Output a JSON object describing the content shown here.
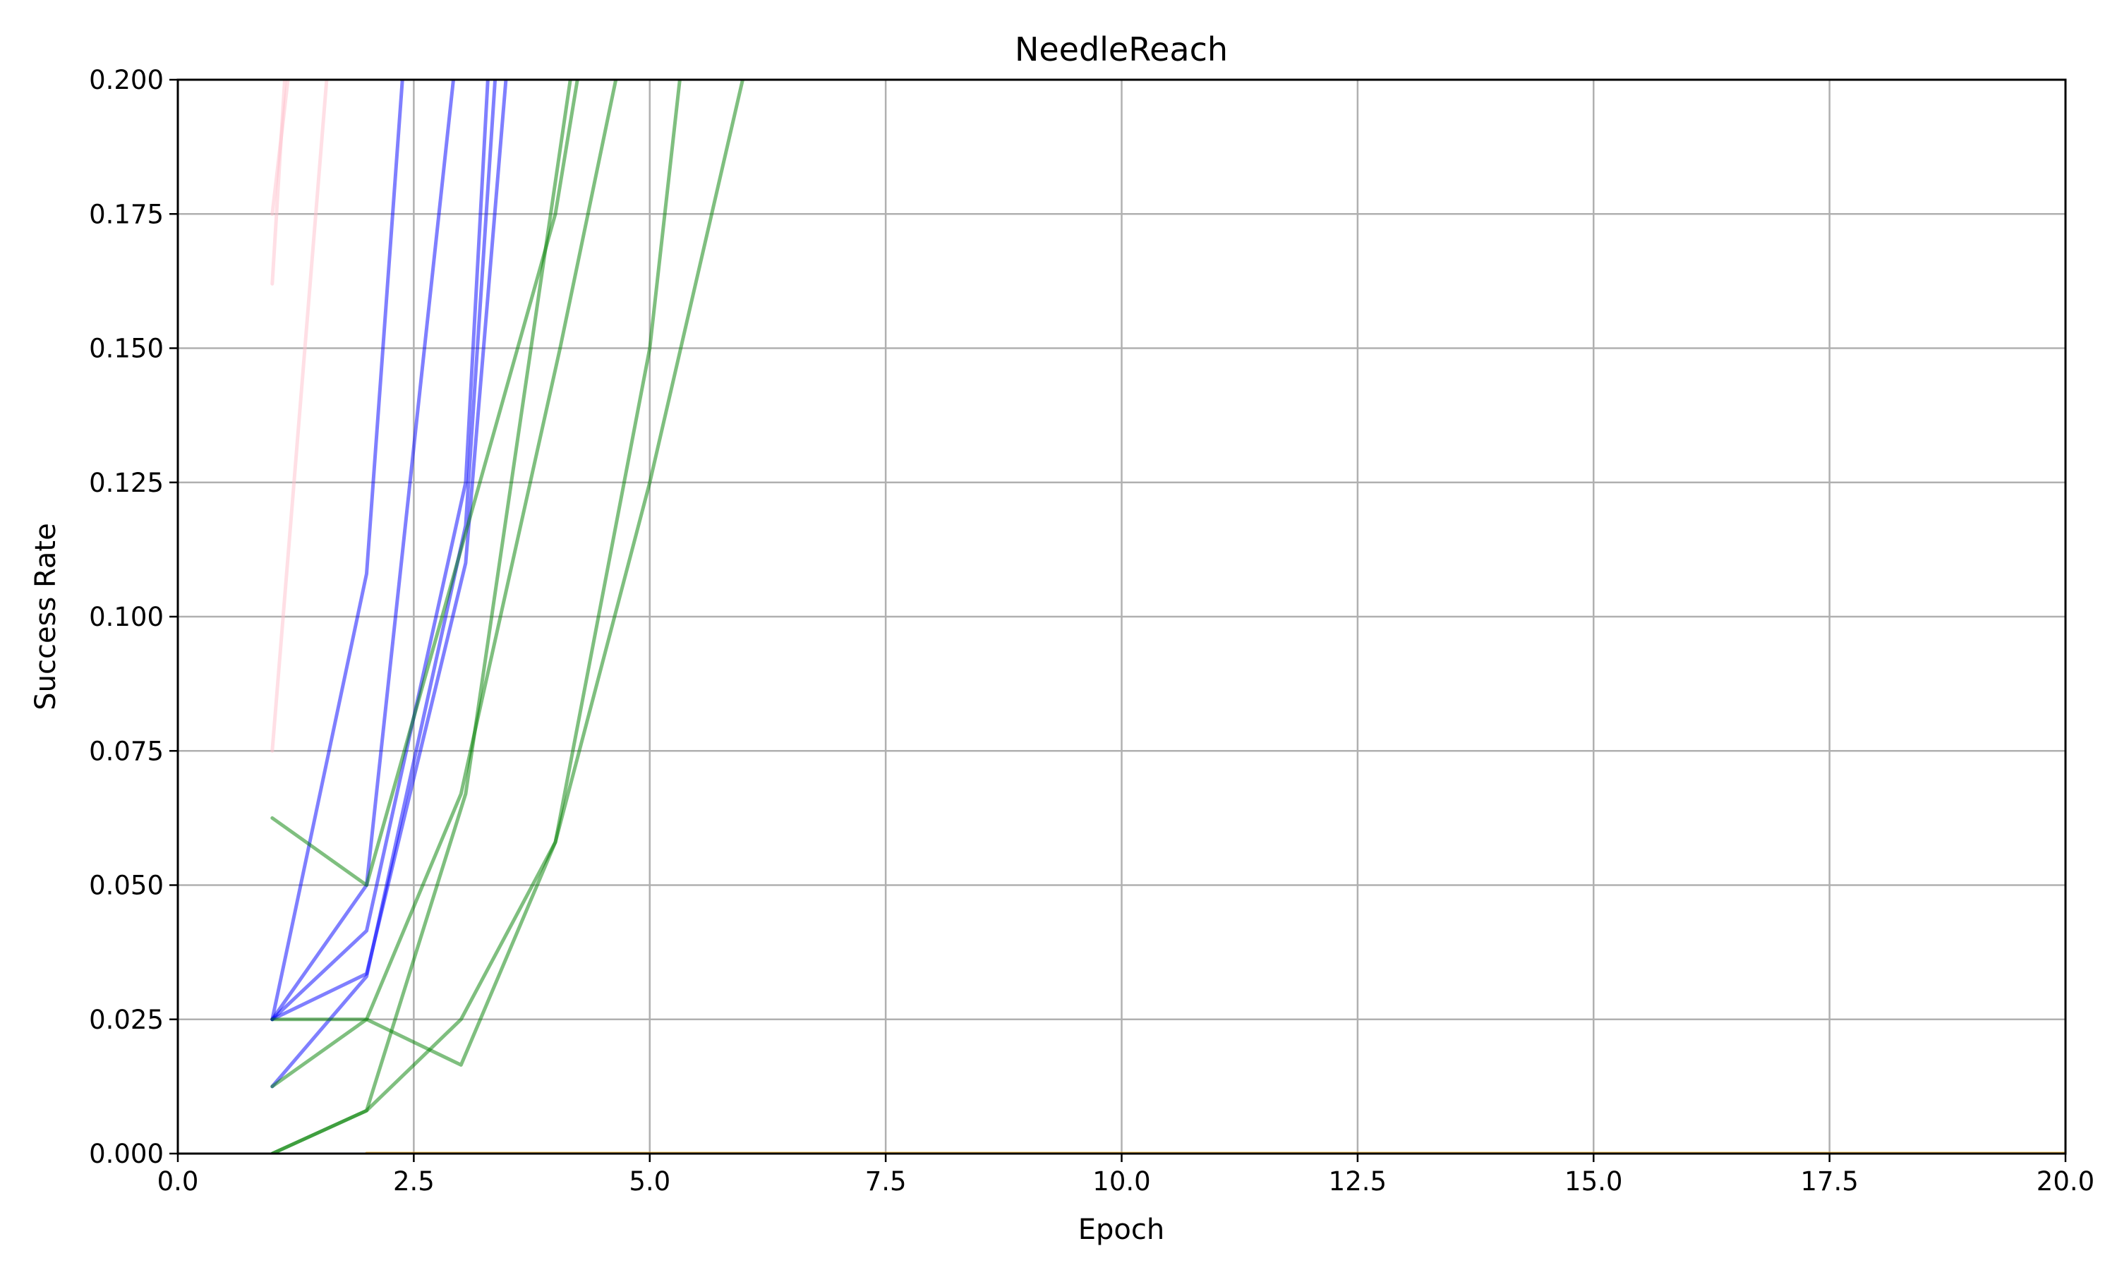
{
  "chart_data": {
    "type": "line",
    "title": "NeedleReach",
    "xlabel": "Epoch",
    "ylabel": "Success Rate",
    "xlim": [
      0,
      20
    ],
    "ylim": [
      0,
      0.2
    ],
    "xticks": [
      0,
      2.5,
      5,
      7.5,
      10,
      12.5,
      15,
      17.5,
      20
    ],
    "xtick_labels": [
      "0.0",
      "2.5",
      "5.0",
      "7.5",
      "10.0",
      "12.5",
      "15.0",
      "17.5",
      "20.0"
    ],
    "yticks": [
      0,
      0.025,
      0.05,
      0.075,
      0.1,
      0.125,
      0.15,
      0.175,
      0.2
    ],
    "ytick_labels": [
      "0.000",
      "0.025",
      "0.050",
      "0.075",
      "0.100",
      "0.125",
      "0.150",
      "0.175",
      "0.200"
    ],
    "grid": true,
    "series": [
      {
        "color": "#ffc0cb",
        "opacity": 0.5,
        "x": [
          1,
          1.15
        ],
        "y": [
          0.162,
          0.205
        ]
      },
      {
        "color": "#ffc0cb",
        "opacity": 0.5,
        "x": [
          1,
          1.2
        ],
        "y": [
          0.175,
          0.205
        ]
      },
      {
        "color": "#ffc0cb",
        "opacity": 0.5,
        "x": [
          1,
          1.6
        ],
        "y": [
          0.075,
          0.205
        ]
      },
      {
        "color": "#0000ff",
        "opacity": 0.5,
        "x": [
          1,
          2,
          2.4
        ],
        "y": [
          0.025,
          0.108,
          0.205
        ]
      },
      {
        "color": "#0000ff",
        "opacity": 0.5,
        "x": [
          1,
          2,
          2.95
        ],
        "y": [
          0.025,
          0.05,
          0.205
        ]
      },
      {
        "color": "#0000ff",
        "opacity": 0.5,
        "x": [
          1,
          2,
          3.05,
          3.3
        ],
        "y": [
          0.025,
          0.0415,
          0.125,
          0.205
        ]
      },
      {
        "color": "#0000ff",
        "opacity": 0.5,
        "x": [
          1,
          2,
          3.05,
          3.38
        ],
        "y": [
          0.0125,
          0.033,
          0.117,
          0.205
        ]
      },
      {
        "color": "#0000ff",
        "opacity": 0.5,
        "x": [
          1,
          2,
          3.05,
          3.5
        ],
        "y": [
          0.025,
          0.0335,
          0.11,
          0.205
        ]
      },
      {
        "color": "#008000",
        "opacity": 0.5,
        "x": [
          1,
          2,
          4,
          4.28
        ],
        "y": [
          0.0625,
          0.05,
          0.175,
          0.205
        ]
      },
      {
        "color": "#008000",
        "opacity": 0.5,
        "x": [
          1,
          2,
          3,
          4.05,
          4.7
        ],
        "y": [
          0.025,
          0.025,
          0.067,
          0.15,
          0.205
        ]
      },
      {
        "color": "#008000",
        "opacity": 0.5,
        "x": [
          1,
          2,
          3,
          4,
          5,
          5.35
        ],
        "y": [
          0.0125,
          0.025,
          0.0165,
          0.058,
          0.15,
          0.205
        ]
      },
      {
        "color": "#008000",
        "opacity": 0.5,
        "x": [
          1,
          2,
          3,
          4,
          5,
          6.05
        ],
        "y": [
          0,
          0.008,
          0.025,
          0.058,
          0.125,
          0.205
        ]
      },
      {
        "color": "#008000",
        "opacity": 0.5,
        "x": [
          1,
          2,
          3.05,
          4.2
        ],
        "y": [
          0,
          0.008,
          0.067,
          0.205
        ]
      },
      {
        "color": "#ffa500",
        "opacity": 0.7,
        "x": [
          2,
          20
        ],
        "y": [
          0,
          0
        ]
      }
    ]
  }
}
